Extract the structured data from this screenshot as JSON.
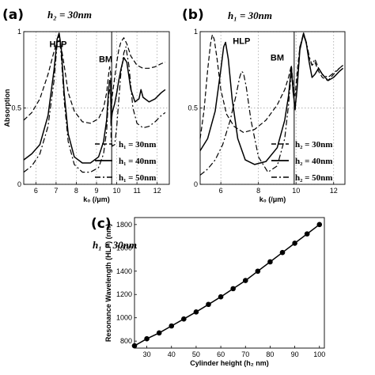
{
  "panels": {
    "a": {
      "label": "(a)",
      "param": "h₂ = 30nm"
    },
    "b": {
      "label": "(b)",
      "param": "h₁ = 30nm"
    },
    "c": {
      "label": "(c)",
      "param": "h₁ = 30nm"
    }
  },
  "chart_data": [
    {
      "id": "a",
      "type": "line",
      "xlabel": "k₀ (/μm)",
      "ylabel": "Absorption",
      "xlim": [
        5.4,
        12.6
      ],
      "ylim": [
        0,
        1
      ],
      "xticks": [
        6,
        7,
        8,
        9,
        10,
        11,
        12
      ],
      "yticks": [
        0,
        0.5,
        1
      ],
      "ytick_labels": [
        "0",
        "0.5",
        "1"
      ],
      "grid": true,
      "legend": "bottom-right",
      "annotations": [
        {
          "text": "HLP",
          "x": 7.1,
          "y": 0.9
        },
        {
          "text": "BM",
          "x": 9.45,
          "y": 0.8
        }
      ],
      "vline": 9.75,
      "series": [
        {
          "name": "h₁ = 30nm",
          "style": "dashed",
          "x": [
            5.4,
            5.8,
            6.2,
            6.6,
            6.9,
            7.05,
            7.15,
            7.25,
            7.4,
            7.6,
            7.9,
            8.3,
            8.7,
            9.1,
            9.35,
            9.5,
            9.6,
            9.65,
            9.7,
            9.72,
            9.78,
            9.9,
            10.0,
            10.1,
            10.2,
            10.35,
            10.5,
            10.7,
            11.0,
            11.3,
            11.6,
            11.9,
            12.2,
            12.4
          ],
          "y": [
            0.42,
            0.47,
            0.56,
            0.72,
            0.87,
            0.93,
            0.94,
            0.9,
            0.78,
            0.6,
            0.48,
            0.41,
            0.4,
            0.43,
            0.5,
            0.6,
            0.72,
            0.77,
            0.73,
            0.45,
            0.58,
            0.7,
            0.8,
            0.88,
            0.93,
            0.96,
            0.92,
            0.84,
            0.78,
            0.76,
            0.76,
            0.77,
            0.79,
            0.8
          ]
        },
        {
          "name": "h₁ = 40nm",
          "style": "solid",
          "x": [
            5.4,
            5.8,
            6.2,
            6.6,
            6.9,
            7.05,
            7.15,
            7.25,
            7.4,
            7.6,
            7.9,
            8.3,
            8.7,
            9.1,
            9.35,
            9.5,
            9.6,
            9.65,
            9.7,
            9.72,
            9.78,
            9.9,
            10.0,
            10.1,
            10.2,
            10.35,
            10.5,
            10.7,
            10.9,
            11.1,
            11.2,
            11.3,
            11.6,
            11.9,
            12.2,
            12.4
          ],
          "y": [
            0.16,
            0.2,
            0.26,
            0.45,
            0.75,
            0.95,
            0.99,
            0.9,
            0.6,
            0.33,
            0.18,
            0.14,
            0.14,
            0.18,
            0.28,
            0.42,
            0.62,
            0.68,
            0.66,
            0.4,
            0.47,
            0.53,
            0.6,
            0.68,
            0.75,
            0.83,
            0.8,
            0.62,
            0.54,
            0.56,
            0.62,
            0.57,
            0.54,
            0.56,
            0.6,
            0.62
          ]
        },
        {
          "name": "h₁ = 50nm",
          "style": "dashdot",
          "x": [
            5.4,
            5.8,
            6.2,
            6.6,
            6.9,
            7.05,
            7.15,
            7.25,
            7.4,
            7.6,
            7.9,
            8.3,
            8.7,
            9.1,
            9.35,
            9.5,
            9.6,
            9.65,
            9.7,
            9.72,
            9.78,
            9.9,
            10.0,
            10.1,
            10.2,
            10.35,
            10.45,
            10.6,
            10.8,
            11.0,
            11.3,
            11.6,
            11.9,
            12.2,
            12.4
          ],
          "y": [
            0.08,
            0.12,
            0.2,
            0.38,
            0.68,
            0.92,
            0.98,
            0.85,
            0.55,
            0.28,
            0.13,
            0.08,
            0.08,
            0.11,
            0.2,
            0.35,
            0.58,
            0.62,
            0.6,
            0.3,
            0.25,
            0.26,
            0.38,
            0.55,
            0.72,
            0.86,
            0.9,
            0.78,
            0.5,
            0.4,
            0.37,
            0.38,
            0.41,
            0.45,
            0.47
          ]
        }
      ]
    },
    {
      "id": "b",
      "type": "line",
      "xlabel": "k₀ (/μm)",
      "ylabel": "",
      "xlim": [
        4.9,
        12.6
      ],
      "ylim": [
        0,
        1
      ],
      "xticks": [
        6,
        8,
        10,
        12
      ],
      "yticks": [
        0,
        0.5,
        1
      ],
      "ytick_labels": [
        "0",
        "0.5",
        "1"
      ],
      "grid": true,
      "legend": "bottom-right",
      "annotations": [
        {
          "text": "HLP",
          "x": 7.1,
          "y": 0.92
        },
        {
          "text": "BM",
          "x": 9.0,
          "y": 0.81
        }
      ],
      "vline": 9.9,
      "series": [
        {
          "name": "h₂ = 30nm",
          "style": "dashed",
          "x": [
            4.9,
            5.1,
            5.3,
            5.45,
            5.55,
            5.65,
            5.8,
            6.0,
            6.3,
            6.7,
            7.2,
            7.8,
            8.4,
            9.0,
            9.4,
            9.6,
            9.75,
            9.85,
            9.95,
            10.05,
            10.2,
            10.4,
            10.55,
            10.7,
            10.85,
            11.0,
            11.2,
            11.4,
            11.7,
            12.0,
            12.3,
            12.5
          ],
          "y": [
            0.3,
            0.48,
            0.75,
            0.92,
            0.98,
            0.95,
            0.82,
            0.62,
            0.46,
            0.38,
            0.34,
            0.36,
            0.42,
            0.52,
            0.62,
            0.7,
            0.78,
            0.65,
            0.58,
            0.72,
            0.9,
            0.98,
            0.92,
            0.82,
            0.78,
            0.8,
            0.74,
            0.7,
            0.68,
            0.72,
            0.76,
            0.78
          ]
        },
        {
          "name": "h₂ = 40nm",
          "style": "solid",
          "x": [
            4.9,
            5.3,
            5.7,
            6.0,
            6.15,
            6.25,
            6.4,
            6.6,
            6.9,
            7.3,
            7.8,
            8.4,
            9.0,
            9.4,
            9.6,
            9.75,
            9.85,
            9.95,
            10.05,
            10.2,
            10.4,
            10.55,
            10.7,
            10.85,
            11.0,
            11.2,
            11.4,
            11.7,
            12.0,
            12.3,
            12.5
          ],
          "y": [
            0.22,
            0.3,
            0.48,
            0.75,
            0.9,
            0.93,
            0.82,
            0.56,
            0.3,
            0.16,
            0.13,
            0.15,
            0.24,
            0.42,
            0.58,
            0.77,
            0.6,
            0.5,
            0.62,
            0.88,
            0.99,
            0.92,
            0.8,
            0.7,
            0.72,
            0.76,
            0.72,
            0.68,
            0.7,
            0.74,
            0.76
          ]
        },
        {
          "name": "h₂ = 50nm",
          "style": "dashdot",
          "x": [
            4.9,
            5.3,
            5.7,
            6.1,
            6.5,
            6.8,
            7.0,
            7.1,
            7.2,
            7.35,
            7.6,
            8.0,
            8.5,
            9.0,
            9.4,
            9.6,
            9.75,
            9.85,
            9.95,
            10.05,
            10.2,
            10.4,
            10.55,
            10.7,
            10.85,
            11.0,
            11.2,
            11.4,
            11.7,
            12.0,
            12.3,
            12.5
          ],
          "y": [
            0.06,
            0.1,
            0.16,
            0.26,
            0.42,
            0.58,
            0.7,
            0.74,
            0.73,
            0.64,
            0.42,
            0.18,
            0.08,
            0.12,
            0.3,
            0.52,
            0.74,
            0.6,
            0.48,
            0.62,
            0.9,
            0.99,
            0.93,
            0.84,
            0.78,
            0.82,
            0.76,
            0.72,
            0.7,
            0.73,
            0.76,
            0.78
          ]
        }
      ]
    },
    {
      "id": "c",
      "type": "line",
      "xlabel": "Cylinder height (h₂ nm)",
      "ylabel": "Resonance Wavelength (HLP) (nm)",
      "xlim": [
        25,
        102
      ],
      "ylim": [
        740,
        1860
      ],
      "xticks": [
        30,
        40,
        50,
        60,
        70,
        80,
        90,
        100
      ],
      "yticks": [
        800,
        1000,
        1200,
        1400,
        1600,
        1800
      ],
      "ytick_labels": [
        "800",
        "1000",
        "1200",
        "1400",
        "1600",
        "1800"
      ],
      "grid": false,
      "markers": true,
      "series": [
        {
          "x": [
            25,
            30,
            35,
            40,
            45,
            50,
            55,
            60,
            65,
            70,
            75,
            80,
            85,
            90,
            95,
            100
          ],
          "y": [
            760,
            820,
            870,
            930,
            990,
            1050,
            1115,
            1180,
            1250,
            1320,
            1400,
            1480,
            1560,
            1640,
            1720,
            1800
          ]
        }
      ]
    }
  ]
}
